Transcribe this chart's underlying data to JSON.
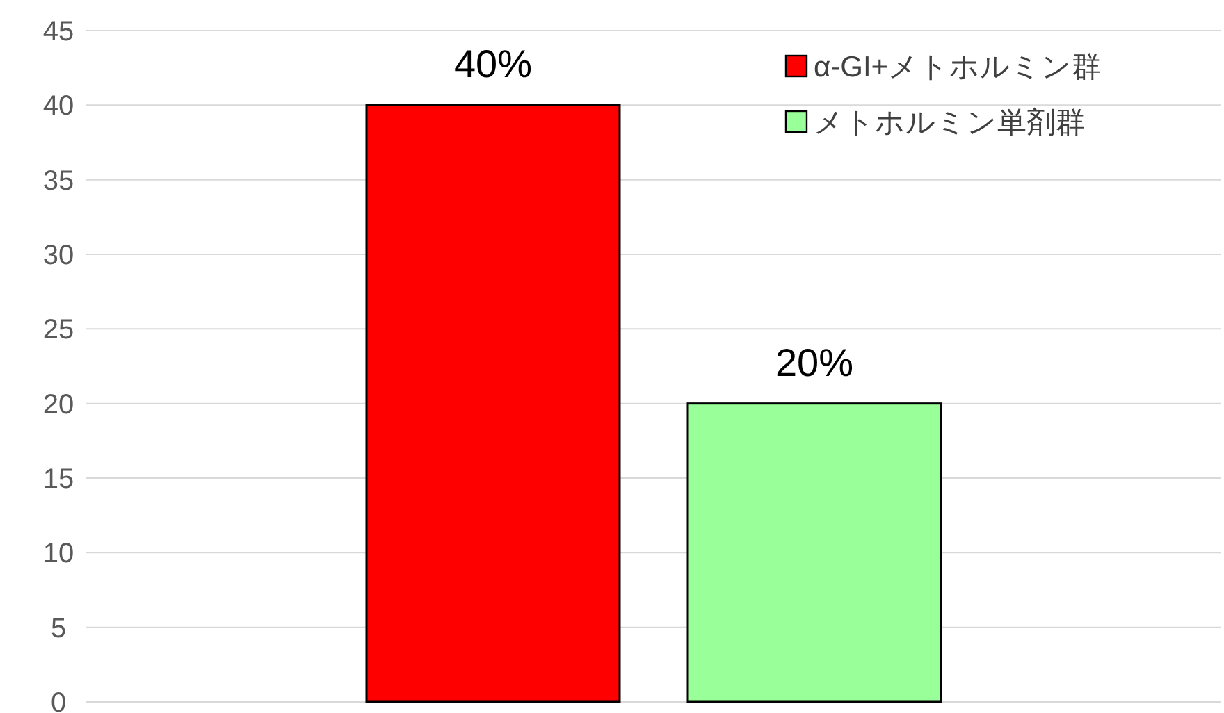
{
  "chart_data": {
    "type": "bar",
    "categories": [
      null
    ],
    "series": [
      {
        "name": "α-GI+メトホルミン群",
        "color": "#ff0000",
        "values": [
          40
        ],
        "value_labels": [
          "40%"
        ]
      },
      {
        "name": "メトホルミン単剤群",
        "color": "#99ff99",
        "values": [
          20
        ],
        "value_labels": [
          "20%"
        ]
      }
    ],
    "ylim": [
      0,
      45
    ],
    "yticks": [
      0,
      5,
      10,
      15,
      20,
      25,
      30,
      35,
      40,
      45
    ],
    "grid": "y",
    "legend": "top right"
  }
}
